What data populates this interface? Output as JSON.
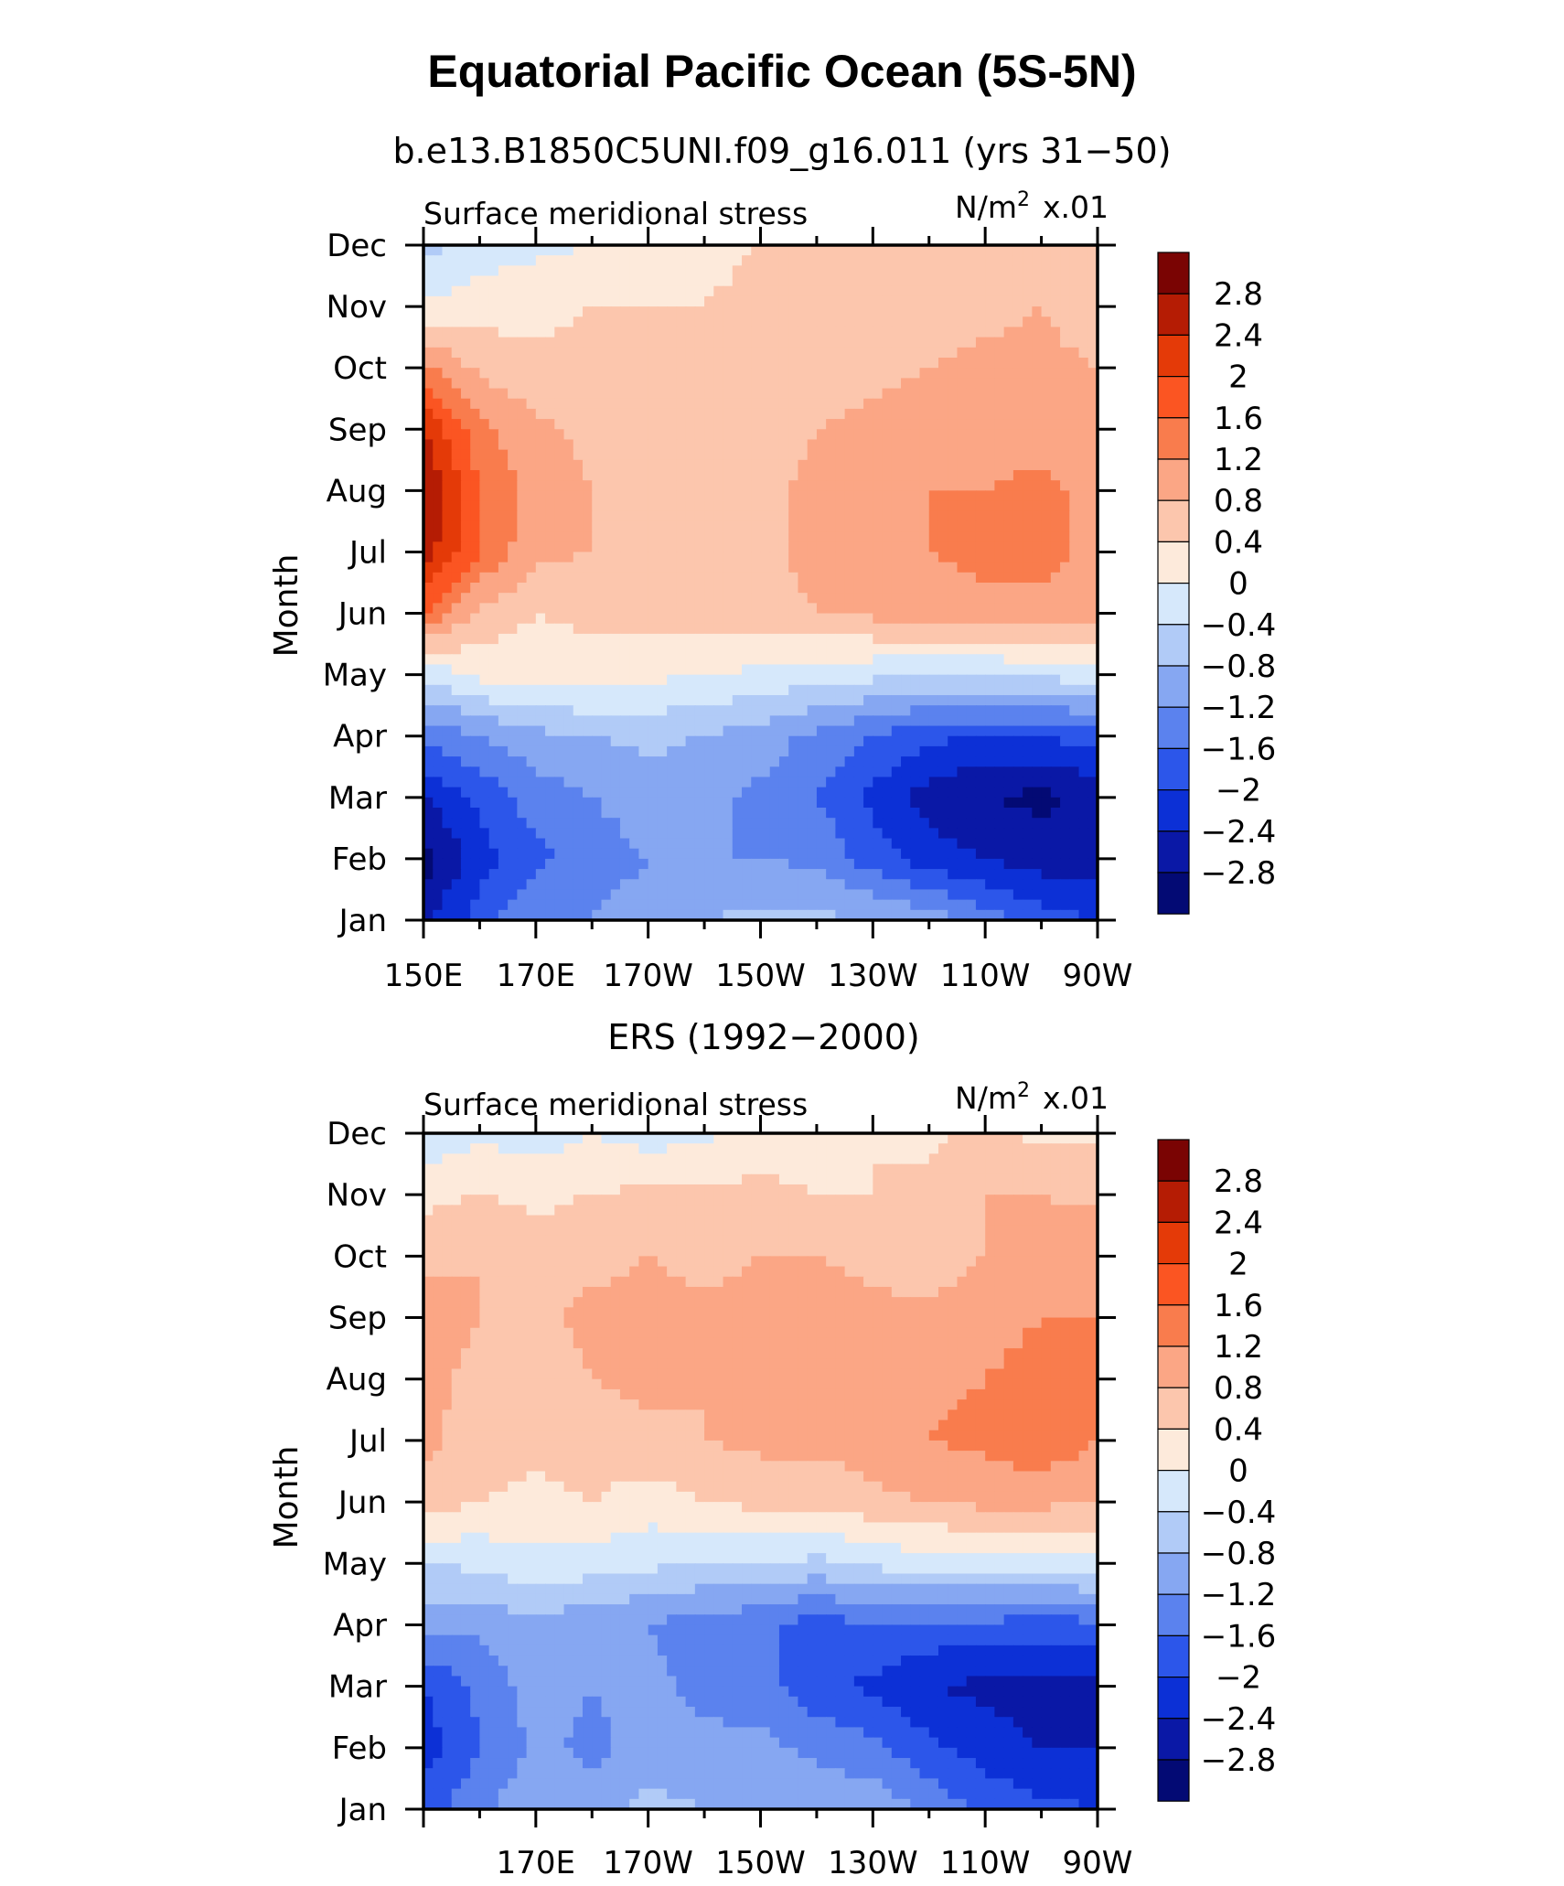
{
  "title": "Equatorial Pacific Ocean (5S-5N)",
  "colorbar": {
    "labels": [
      "2.8",
      "2.4",
      "2",
      "1.6",
      "1.2",
      "0.8",
      "0.4",
      "0",
      "−0.4",
      "−0.8",
      "−1.2",
      "−1.6",
      "−2",
      "−2.4",
      "−2.8"
    ],
    "levels": [
      2.8,
      2.4,
      2.0,
      1.6,
      1.2,
      0.8,
      0.4,
      0,
      -0.4,
      -0.8,
      -1.2,
      -1.6,
      -2.0,
      -2.4,
      -2.8
    ],
    "colors": [
      "#7a0403",
      "#b51c04",
      "#e43a08",
      "#fb5522",
      "#f97c4d",
      "#fba685",
      "#fcc6ad",
      "#fdeadb",
      "#d6e8fb",
      "#b1cbf7",
      "#86a7f2",
      "#5b82ee",
      "#2c56ea",
      "#0c30d6",
      "#0a18a6",
      "#030a74"
    ]
  },
  "chart_data": [
    {
      "type": "heatmap",
      "subtitle": "b.e13.B1850C5UNI.f09_g16.011 (yrs 31−50)",
      "left_label": "Surface meridional stress",
      "unit_base": "N/m",
      "unit_exp": "2",
      "unit_scale": "x.01",
      "ylabel": "Month",
      "y_ticks": [
        "Jan",
        "Feb",
        "Mar",
        "Apr",
        "May",
        "Jun",
        "Jul",
        "Aug",
        "Sep",
        "Oct",
        "Nov",
        "Dec"
      ],
      "x_ticks": [
        "150E",
        "170E",
        "170W",
        "150W",
        "130W",
        "110W",
        "90W"
      ],
      "x": [
        150,
        160,
        170,
        180,
        190,
        200,
        210,
        220,
        230,
        240,
        250,
        260,
        270
      ],
      "y": [
        "Jan",
        "Feb",
        "Mar",
        "Apr",
        "May",
        "Jun",
        "Jul",
        "Aug",
        "Sep",
        "Oct",
        "Nov",
        "Dec"
      ],
      "z": [
        [
          -2.5,
          -1.8,
          -1.2,
          -1.2,
          -1.0,
          -0.8,
          -0.7,
          -0.7,
          -0.8,
          -1.0,
          -1.4,
          -1.8,
          -2.0
        ],
        [
          -3.0,
          -2.2,
          -1.7,
          -1.4,
          -1.2,
          -1.2,
          -1.2,
          -1.3,
          -1.8,
          -2.2,
          -2.4,
          -2.6,
          -2.6
        ],
        [
          -2.4,
          -1.9,
          -1.4,
          -1.2,
          -1.0,
          -1.1,
          -1.3,
          -1.6,
          -2.1,
          -2.6,
          -2.8,
          -2.9,
          -2.7
        ],
        [
          -1.5,
          -1.2,
          -0.9,
          -0.8,
          -0.7,
          -0.8,
          -1.0,
          -1.3,
          -1.6,
          -1.9,
          -2.0,
          -2.0,
          -1.8
        ],
        [
          -0.3,
          0.1,
          0.2,
          0.2,
          0.1,
          0.0,
          -0.1,
          -0.2,
          -0.3,
          -0.4,
          -0.4,
          -0.3,
          -0.2
        ],
        [
          1.6,
          0.7,
          0.4,
          0.5,
          0.6,
          0.6,
          0.7,
          0.8,
          0.9,
          1.0,
          1.1,
          1.1,
          1.0
        ],
        [
          2.6,
          1.6,
          0.9,
          0.8,
          0.7,
          0.7,
          0.7,
          0.9,
          1.0,
          1.2,
          1.3,
          1.3,
          1.1
        ],
        [
          2.9,
          1.6,
          1.0,
          0.8,
          0.7,
          0.7,
          0.7,
          0.9,
          1.0,
          1.2,
          1.2,
          1.3,
          1.1
        ],
        [
          2.4,
          1.3,
          0.9,
          0.7,
          0.6,
          0.6,
          0.6,
          0.8,
          0.9,
          1.0,
          1.1,
          1.0,
          0.9
        ],
        [
          1.3,
          0.7,
          0.5,
          0.5,
          0.5,
          0.5,
          0.6,
          0.6,
          0.7,
          0.8,
          0.9,
          0.9,
          0.8
        ],
        [
          0.1,
          0.2,
          0.3,
          0.4,
          0.4,
          0.4,
          0.5,
          0.5,
          0.5,
          0.6,
          0.7,
          0.8,
          0.6
        ],
        [
          -0.6,
          -0.2,
          -0.1,
          0.0,
          0.2,
          0.3,
          0.4,
          0.4,
          0.4,
          0.4,
          0.5,
          0.7,
          0.4
        ]
      ]
    },
    {
      "type": "heatmap",
      "subtitle": "ERS (1992−2000)",
      "left_label": "Surface meridional stress",
      "unit_base": "N/m",
      "unit_exp": "2",
      "unit_scale": "x.01",
      "ylabel": "Month",
      "y_ticks": [
        "Jan",
        "Feb",
        "Mar",
        "Apr",
        "May",
        "Jun",
        "Jul",
        "Aug",
        "Sep",
        "Oct",
        "Nov",
        "Dec"
      ],
      "x_ticks": [
        "170E",
        "170W",
        "150W",
        "130W",
        "110W",
        "90W"
      ],
      "x": [
        150,
        160,
        170,
        180,
        190,
        200,
        210,
        220,
        230,
        240,
        250,
        260,
        270
      ],
      "y": [
        "Jan",
        "Feb",
        "Mar",
        "Apr",
        "May",
        "Jun",
        "Jul",
        "Aug",
        "Sep",
        "Oct",
        "Nov",
        "Dec"
      ],
      "z": [
        [
          -1.8,
          -1.3,
          -0.9,
          -1.0,
          -0.7,
          -0.8,
          -0.8,
          -0.9,
          -0.9,
          -1.3,
          -1.7,
          -1.9,
          -2.0
        ],
        [
          -2.2,
          -1.6,
          -1.1,
          -1.3,
          -1.0,
          -1.1,
          -1.1,
          -1.3,
          -1.5,
          -1.9,
          -2.2,
          -2.4,
          -2.4
        ],
        [
          -2.0,
          -1.5,
          -1.0,
          -1.2,
          -1.1,
          -1.3,
          -1.4,
          -1.9,
          -2.1,
          -2.4,
          -2.5,
          -2.6,
          -2.6
        ],
        [
          -1.0,
          -1.1,
          -0.9,
          -1.1,
          -1.2,
          -1.4,
          -1.5,
          -1.8,
          -1.6,
          -1.7,
          -1.7,
          -1.8,
          -1.7
        ],
        [
          -0.4,
          -0.3,
          -0.1,
          -0.2,
          -0.3,
          -0.4,
          -0.4,
          -0.5,
          -0.3,
          -0.2,
          -0.2,
          -0.2,
          -0.1
        ],
        [
          0.6,
          0.4,
          0.3,
          0.4,
          0.2,
          0.4,
          0.5,
          0.5,
          0.7,
          0.8,
          0.9,
          0.9,
          0.8
        ],
        [
          0.9,
          0.6,
          0.5,
          0.6,
          0.7,
          0.8,
          0.9,
          0.9,
          1.0,
          1.2,
          1.3,
          1.5,
          1.2
        ],
        [
          1.0,
          0.6,
          0.6,
          0.8,
          0.9,
          0.8,
          1.0,
          1.0,
          1.0,
          1.1,
          1.2,
          1.4,
          1.3
        ],
        [
          1.2,
          0.8,
          0.7,
          0.9,
          0.9,
          0.9,
          0.9,
          1.0,
          0.9,
          0.9,
          1.0,
          1.2,
          1.2
        ],
        [
          0.6,
          0.8,
          0.6,
          0.7,
          0.8,
          0.7,
          0.8,
          0.8,
          0.7,
          0.6,
          0.8,
          1.0,
          1.1
        ],
        [
          0.3,
          0.4,
          0.3,
          0.4,
          0.5,
          0.5,
          0.5,
          0.4,
          0.4,
          0.5,
          0.8,
          0.8,
          0.7
        ],
        [
          -0.3,
          -0.1,
          -0.2,
          0.0,
          -0.2,
          -0.1,
          0.2,
          0.2,
          0.4,
          0.3,
          0.5,
          0.3,
          0.3
        ]
      ]
    }
  ]
}
